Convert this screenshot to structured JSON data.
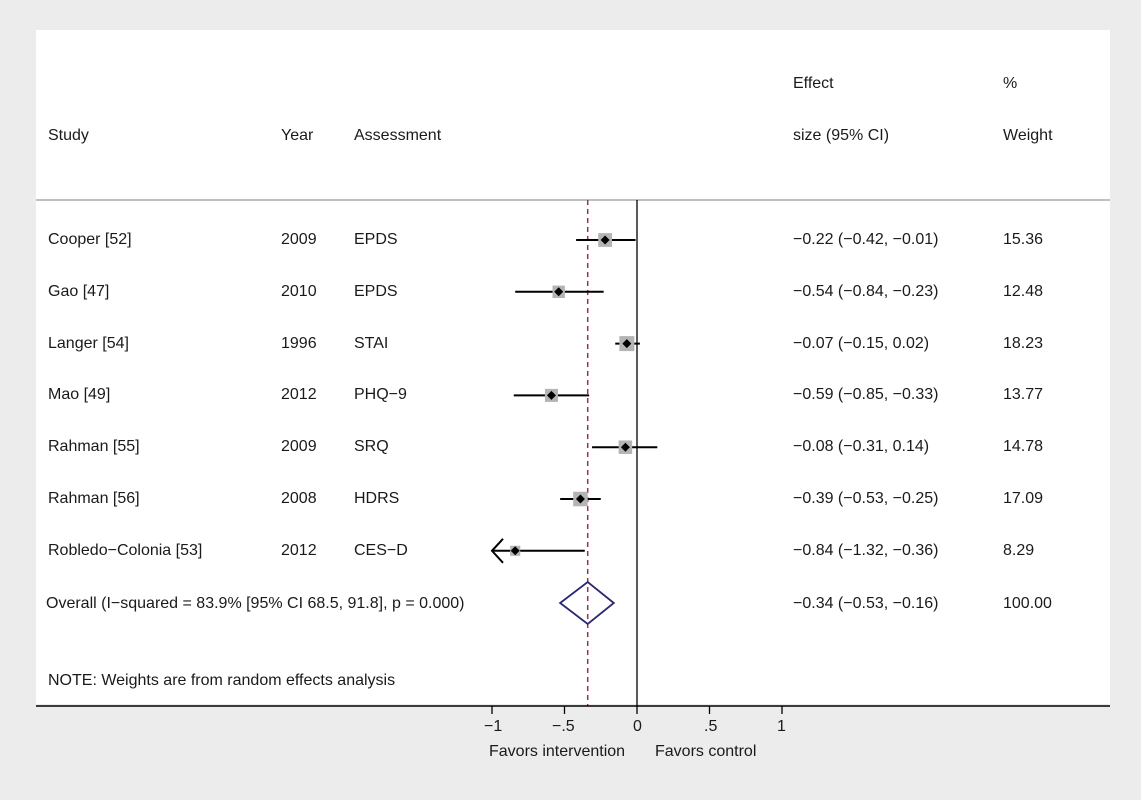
{
  "chart_data": {
    "type": "forest",
    "headers": {
      "study": "Study",
      "year": "Year",
      "assessment": "Assessment",
      "effect_line1": "Effect",
      "effect_line2": "size (95% CI)",
      "weight_line1": "%",
      "weight_line2": "Weight"
    },
    "studies": [
      {
        "study": "Cooper [52]",
        "year": "2009",
        "assessment": "EPDS",
        "effect": -0.22,
        "lower": -0.42,
        "upper": -0.01,
        "effect_text": "−0.22 (−0.42, −0.01)",
        "weight": 15.36,
        "weight_text": "15.36"
      },
      {
        "study": "Gao [47]",
        "year": "2010",
        "assessment": "EPDS",
        "effect": -0.54,
        "lower": -0.84,
        "upper": -0.23,
        "effect_text": "−0.54 (−0.84, −0.23)",
        "weight": 12.48,
        "weight_text": "12.48"
      },
      {
        "study": "Langer [54]",
        "year": "1996",
        "assessment": "STAI",
        "effect": -0.07,
        "lower": -0.15,
        "upper": 0.02,
        "effect_text": "−0.07 (−0.15, 0.02)",
        "weight": 18.23,
        "weight_text": "18.23"
      },
      {
        "study": "Mao [49]",
        "year": "2012",
        "assessment": "PHQ−9",
        "effect": -0.59,
        "lower": -0.85,
        "upper": -0.33,
        "effect_text": "−0.59 (−0.85, −0.33)",
        "weight": 13.77,
        "weight_text": "13.77"
      },
      {
        "study": "Rahman [55]",
        "year": "2009",
        "assessment": "SRQ",
        "effect": -0.08,
        "lower": -0.31,
        "upper": 0.14,
        "effect_text": "−0.08 (−0.31, 0.14)",
        "weight": 14.78,
        "weight_text": "14.78"
      },
      {
        "study": "Rahman [56]",
        "year": "2008",
        "assessment": "HDRS",
        "effect": -0.39,
        "lower": -0.53,
        "upper": -0.25,
        "effect_text": "−0.39 (−0.53, −0.25)",
        "weight": 17.09,
        "weight_text": "17.09"
      },
      {
        "study": "Robledo−Colonia [53]",
        "year": "2012",
        "assessment": "CES−D",
        "effect": -0.84,
        "lower": -1.32,
        "upper": -0.36,
        "effect_text": "−0.84 (−1.32, −0.36)",
        "weight": 8.29,
        "weight_text": "8.29"
      }
    ],
    "overall": {
      "label": "Overall (I−squared = 83.9% [95% CI 68.5, 91.8], p = 0.000)",
      "effect": -0.34,
      "lower": -0.53,
      "upper": -0.16,
      "effect_text": "−0.34 (−0.53, −0.16)",
      "weight_text": "100.00"
    },
    "note": "NOTE: Weights are from random effects analysis",
    "x_axis": {
      "ticks": [
        -1,
        -0.5,
        0,
        0.5,
        1
      ],
      "tick_labels": [
        "−1",
        "−.5",
        "0",
        ".5",
        "1"
      ],
      "xlim": [
        -1,
        1
      ],
      "left_label": "Favors intervention",
      "right_label": "Favors control"
    },
    "colors": {
      "background": "#ececec",
      "panel": "#ffffff",
      "point": "#000000",
      "weight_box": "#b4b4b4",
      "overall_diamond": "#2b2770",
      "overall_line": "#a0304a",
      "null_line": "#000000"
    }
  }
}
